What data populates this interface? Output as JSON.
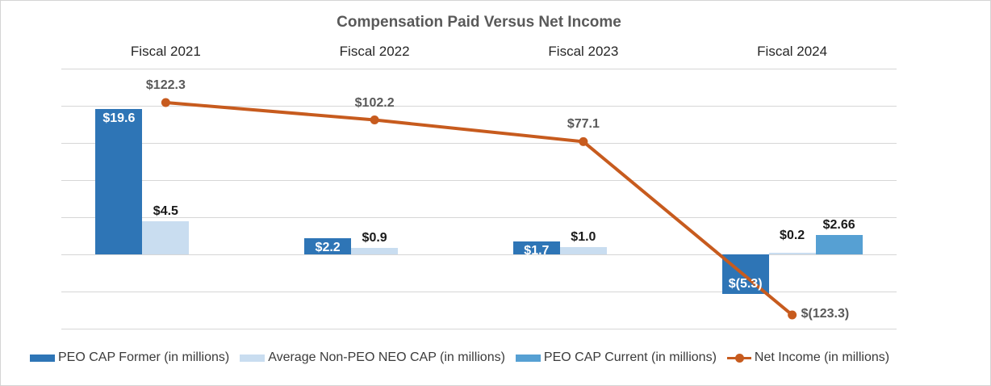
{
  "title": "Compensation Paid Versus Net Income",
  "colors": {
    "peo_cap_former": "#2E75B6",
    "avg_non_peo_neo_cap": "#C9DDF0",
    "peo_cap_current": "#56A0D3",
    "net_income": "#C75B1E",
    "title_text": "#595959",
    "category_text": "#262626",
    "value_label_text": "#1A1A1A",
    "inside_bar_label_text": "#FFFFFF",
    "net_income_label_text": "#595959",
    "legend_text": "#3B3B3B",
    "gridline": "#D6D6D6"
  },
  "chart_data": {
    "type": "bar+line combo",
    "title": "Compensation Paid Versus Net Income",
    "categories": [
      "Fiscal 2021",
      "Fiscal 2022",
      "Fiscal 2023",
      "Fiscal 2024"
    ],
    "series": [
      {
        "name": "PEO CAP Former (in millions)",
        "type": "bar",
        "color_key": "peo_cap_former",
        "values": [
          19.6,
          2.2,
          1.7,
          -5.3
        ],
        "labels": [
          "$19.6",
          "$2.2",
          "$1.7",
          "$(5.3)"
        ],
        "label_style": "inside-white"
      },
      {
        "name": "Average Non-PEO NEO CAP (in millions)",
        "type": "bar",
        "color_key": "avg_non_peo_neo_cap",
        "values": [
          4.5,
          0.9,
          1.0,
          0.2
        ],
        "labels": [
          "$4.5",
          "$0.9",
          "$1.0",
          "$0.2"
        ],
        "label_style": "above-black"
      },
      {
        "name": "PEO CAP Current (in millions)",
        "type": "bar",
        "color_key": "peo_cap_current",
        "values": [
          null,
          null,
          null,
          2.66
        ],
        "labels": [
          null,
          null,
          null,
          "$2.66"
        ],
        "label_style": "above-black"
      },
      {
        "name": "Net Income (in millions)",
        "type": "line",
        "color_key": "net_income",
        "values": [
          122.3,
          102.2,
          77.1,
          -123.3
        ],
        "labels": [
          "$122.3",
          "$102.2",
          "$77.1",
          "$(123.3)"
        ],
        "label_style": "above-gray"
      }
    ],
    "bar_axis": {
      "min": -10,
      "max": 25,
      "grid_step": 5,
      "tick_labels_visible": false
    },
    "line_axis": {
      "tick_labels_visible": false
    },
    "grid": true,
    "legend_position": "bottom-left",
    "xlabel": "",
    "ylabel": ""
  },
  "legend": {
    "glyphs": [
      "bar-swatch",
      "bar-swatch",
      "bar-swatch",
      "line-marker"
    ]
  }
}
